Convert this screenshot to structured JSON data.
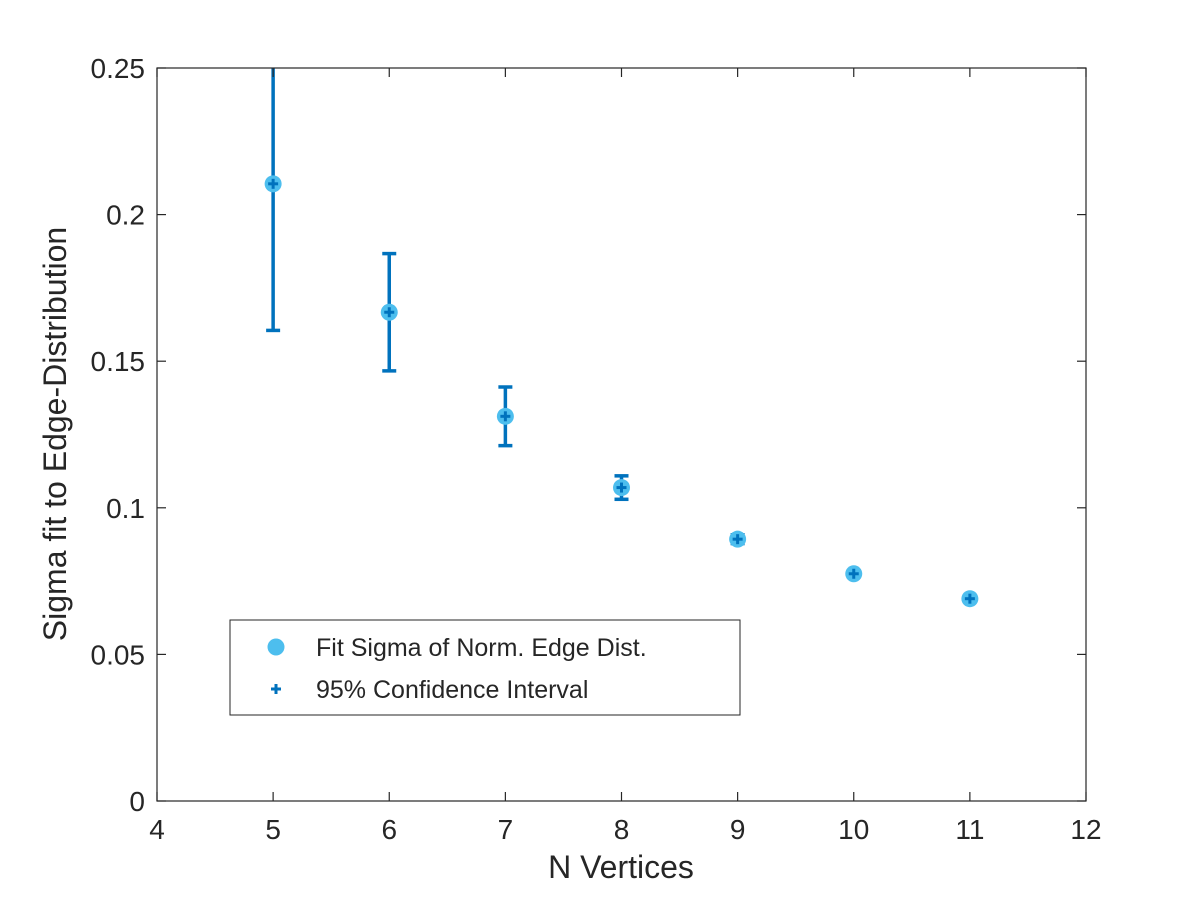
{
  "chart_data": {
    "type": "scatter",
    "title": "",
    "xlabel": "N Vertices",
    "ylabel": "Sigma fit to Edge-Distribution",
    "xlim": [
      4,
      12
    ],
    "ylim": [
      0,
      0.25
    ],
    "xticks": [
      "4",
      "5",
      "6",
      "7",
      "8",
      "9",
      "10",
      "11",
      "12"
    ],
    "yticks": [
      "0",
      "0.05",
      "0.1",
      "0.15",
      "0.2",
      "0.25"
    ],
    "grid": false,
    "legend_position": "lower-left",
    "series": [
      {
        "name": "Fit Sigma of Norm. Edge Dist.",
        "color": "#4DBEEE",
        "marker": "filled-circle",
        "x": [
          5,
          6,
          7,
          8,
          9,
          10,
          11
        ],
        "y": [
          0.2105,
          0.1667,
          0.1312,
          0.1069,
          0.0893,
          0.0775,
          0.069
        ]
      },
      {
        "name": "95% Confidence Interval",
        "color": "#0072BD",
        "marker": "plus-with-errorbar",
        "x": [
          5,
          6,
          7,
          8,
          9,
          10,
          11
        ],
        "y": [
          0.2105,
          0.1667,
          0.1312,
          0.1069,
          0.0893,
          0.0775,
          0.069
        ],
        "lower": [
          0.1605,
          0.1467,
          0.1212,
          0.1029,
          0.0878,
          0.0765,
          0.0685
        ],
        "upper": [
          0.2605,
          0.1867,
          0.1412,
          0.1109,
          0.0908,
          0.0785,
          0.0695
        ]
      }
    ]
  }
}
